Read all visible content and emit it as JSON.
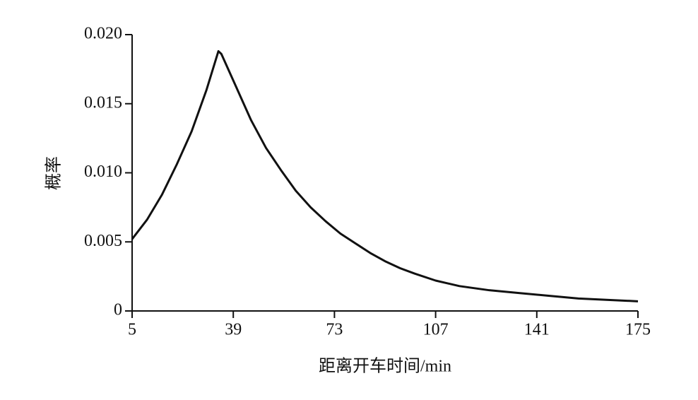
{
  "chart_data": {
    "type": "line",
    "xlabel": "距离开车时间/min",
    "ylabel": "概率",
    "x": [
      5,
      10,
      15,
      20,
      25,
      30,
      34,
      35,
      40,
      45,
      50,
      55,
      60,
      65,
      70,
      75,
      80,
      85,
      90,
      95,
      100,
      107,
      115,
      125,
      135,
      145,
      155,
      165,
      175
    ],
    "series": [
      {
        "color": "#111111",
        "values": [
          0.0052,
          0.0066,
          0.0084,
          0.0106,
          0.013,
          0.016,
          0.0188,
          0.0186,
          0.0162,
          0.0138,
          0.0118,
          0.0102,
          0.0087,
          0.0075,
          0.0065,
          0.0056,
          0.0049,
          0.0042,
          0.0036,
          0.0031,
          0.0027,
          0.0022,
          0.0018,
          0.0015,
          0.0013,
          0.0011,
          0.0009,
          0.0008,
          0.0007
        ]
      }
    ],
    "xlim": [
      5,
      175
    ],
    "xticks": [
      5,
      39,
      73,
      107,
      141,
      175
    ],
    "ylim": [
      0,
      0.02
    ],
    "yticks": [
      0,
      0.005,
      {
        "value": 0.01,
        "label": "0.010"
      },
      0.015,
      {
        "value": 0.02,
        "label": "0.020"
      }
    ],
    "grid": false
  }
}
